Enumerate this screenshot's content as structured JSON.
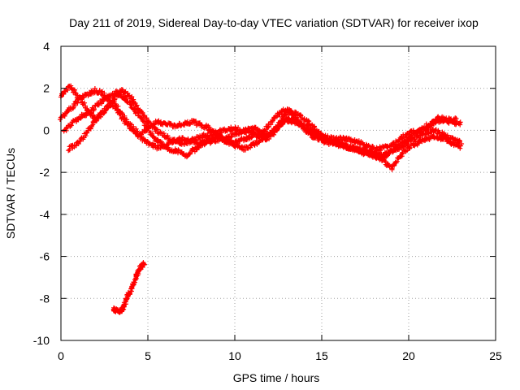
{
  "chart_data": {
    "type": "scatter",
    "title": "Day 211 of 2019, Sidereal Day-to-day VTEC variation (SDTVAR) for receiver ixop",
    "xlabel": "GPS time / hours",
    "ylabel": "SDTVAR / TECUs",
    "xlim": [
      0,
      25
    ],
    "ylim": [
      -10,
      4
    ],
    "x_ticks": [
      0,
      5,
      10,
      15,
      20,
      25
    ],
    "y_ticks": [
      -10,
      -8,
      -6,
      -4,
      -2,
      0,
      2,
      4
    ],
    "grid": true,
    "marker": "+",
    "color": "#ff0000",
    "series": [
      {
        "name": "track-1",
        "x": [
          0.0,
          0.5,
          1.0,
          1.5,
          2.0,
          2.5,
          3.0,
          3.5,
          4.0,
          4.5,
          5.0,
          5.5,
          6.0,
          6.5,
          7.0,
          7.5,
          8.0,
          8.5,
          9.0,
          9.5,
          10.0,
          10.5,
          11.0,
          11.5,
          12.0,
          12.5,
          13.0,
          13.5,
          14.0,
          14.5,
          15.0,
          15.5,
          16.0,
          16.5,
          17.0,
          17.5,
          18.0,
          18.5,
          19.0,
          19.5,
          20.0,
          20.5,
          21.0,
          21.5,
          22.0,
          22.5,
          23.0
        ],
        "y": [
          0.6,
          1.0,
          1.4,
          1.7,
          1.9,
          1.7,
          1.2,
          0.6,
          0.1,
          -0.3,
          -0.6,
          -0.8,
          -0.7,
          -0.5,
          -0.4,
          -0.5,
          -0.6,
          -0.4,
          -0.3,
          -0.5,
          -0.6,
          -0.4,
          -0.3,
          -0.2,
          0.3,
          0.8,
          1.0,
          0.6,
          0.1,
          -0.3,
          -0.5,
          -0.6,
          -0.7,
          -0.8,
          -0.9,
          -1.0,
          -1.1,
          -1.2,
          -1.0,
          -0.8,
          -0.5,
          -0.3,
          -0.1,
          0.0,
          -0.2,
          -0.4,
          -0.6
        ]
      },
      {
        "name": "track-2",
        "x": [
          0.0,
          0.5,
          1.0,
          1.5,
          2.0,
          2.5,
          3.0,
          3.5,
          4.0,
          4.5,
          5.0,
          5.5,
          6.0,
          6.5,
          7.0,
          7.5,
          8.0,
          8.5,
          9.0,
          9.5,
          10.0,
          10.5,
          11.0,
          11.5,
          12.0,
          12.5,
          13.0,
          13.5,
          14.0,
          14.5,
          15.0,
          15.5,
          16.0,
          16.5,
          17.0,
          17.5,
          18.0,
          18.5,
          19.0,
          19.5,
          20.0,
          20.5,
          21.0,
          21.5,
          22.0,
          22.5,
          23.0
        ],
        "y": [
          1.6,
          2.1,
          1.6,
          1.0,
          0.5,
          0.9,
          1.5,
          1.9,
          1.6,
          1.0,
          0.4,
          0.0,
          -0.3,
          -0.5,
          -0.6,
          -0.5,
          -0.3,
          -0.2,
          -0.1,
          0.0,
          0.1,
          0.0,
          -0.1,
          -0.3,
          -0.2,
          0.2,
          0.6,
          0.4,
          0.1,
          -0.2,
          -0.4,
          -0.5,
          -0.6,
          -0.8,
          -0.9,
          -1.1,
          -1.2,
          -1.3,
          -1.0,
          -0.7,
          -0.4,
          -0.1,
          0.2,
          0.4,
          0.5,
          0.4,
          0.3
        ]
      },
      {
        "name": "track-3",
        "x": [
          0.4,
          1.0,
          1.5,
          2.0,
          2.5,
          3.0,
          3.5,
          4.0,
          4.5,
          5.0,
          5.5,
          6.0,
          6.5,
          7.0,
          7.5,
          8.0,
          8.5,
          9.0,
          9.5,
          10.0,
          10.5,
          11.0,
          11.5,
          12.0,
          12.5,
          13.0,
          13.5,
          14.0,
          14.5,
          15.0,
          15.5,
          16.0,
          16.5,
          17.0,
          17.5,
          18.0,
          18.5,
          19.0,
          19.5,
          20.0,
          20.5,
          21.0,
          21.5,
          22.0,
          22.5,
          23.0
        ],
        "y": [
          -0.9,
          -0.6,
          -0.1,
          0.5,
          1.0,
          1.3,
          0.8,
          0.2,
          -0.2,
          0.1,
          0.4,
          0.3,
          0.2,
          0.3,
          0.4,
          0.3,
          0.1,
          -0.2,
          -0.5,
          -0.7,
          -0.9,
          -0.7,
          -0.5,
          -0.3,
          0.1,
          0.5,
          0.4,
          0.2,
          0.0,
          -0.3,
          -0.5,
          -0.7,
          -0.8,
          -0.9,
          -1.0,
          -1.2,
          -1.4,
          -1.8,
          -1.2,
          -0.8,
          -0.6,
          -0.4,
          -0.3,
          -0.4,
          -0.6,
          -0.8
        ]
      },
      {
        "name": "track-4",
        "x": [
          0.2,
          0.7,
          1.2,
          1.7,
          2.2,
          2.7,
          3.2,
          3.7,
          4.2,
          4.7,
          5.2,
          5.7,
          6.2,
          6.7,
          7.2,
          7.7,
          8.2,
          8.7,
          9.2,
          9.7,
          10.2,
          10.7,
          11.2,
          11.7,
          12.2,
          12.7,
          13.2,
          13.7,
          14.2,
          14.7,
          15.2,
          15.7,
          16.2,
          16.7,
          17.2,
          17.7,
          18.2,
          18.7,
          19.2,
          19.7,
          20.2,
          20.7,
          21.2,
          21.7,
          22.2,
          22.7
        ],
        "y": [
          0.0,
          0.4,
          0.7,
          0.9,
          1.3,
          1.6,
          1.8,
          1.5,
          1.0,
          0.5,
          -0.2,
          -0.6,
          -0.9,
          -1.0,
          -1.2,
          -0.9,
          -0.6,
          -0.5,
          -0.4,
          -0.3,
          -0.1,
          0.0,
          0.1,
          -0.3,
          -0.1,
          0.6,
          0.9,
          0.7,
          0.4,
          0.0,
          -0.3,
          -0.4,
          -0.4,
          -0.5,
          -0.6,
          -0.8,
          -0.9,
          -0.8,
          -0.6,
          -0.3,
          -0.1,
          0.0,
          0.2,
          0.6,
          0.5,
          0.5
        ]
      },
      {
        "name": "track-5",
        "x": [
          3.0,
          3.2,
          3.4,
          3.6,
          3.8,
          4.0,
          4.2,
          4.4,
          4.6,
          4.8
        ],
        "y": [
          -8.5,
          -8.6,
          -8.6,
          -8.4,
          -8.0,
          -7.6,
          -7.2,
          -6.8,
          -6.5,
          -6.3
        ]
      }
    ]
  }
}
